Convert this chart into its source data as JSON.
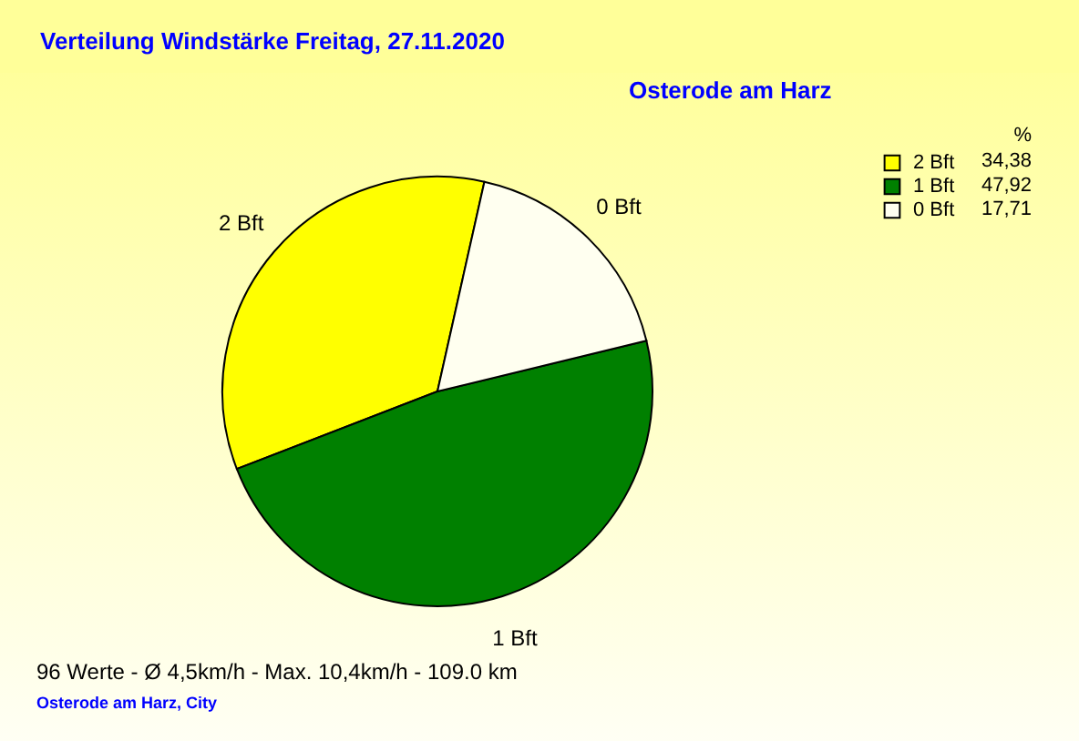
{
  "chart_data": {
    "type": "pie",
    "title": "Verteilung Windstärke  Freitag, 27.11.2020",
    "subtitle": "Osterode am Harz",
    "legend_title": "%",
    "categories": [
      "2 Bft",
      "1 Bft",
      "0 Bft"
    ],
    "values": [
      34.38,
      47.92,
      17.71
    ],
    "value_labels": [
      "34,38",
      "47,92",
      "17,71"
    ],
    "colors": [
      "#ffff00",
      "#008000",
      "#fffff0"
    ],
    "legend": "top right",
    "annotations": [
      "96 Werte - Ø 4,5km/h - Max. 10,4km/h - 109.0 km",
      "Osterode am Harz, City"
    ]
  }
}
